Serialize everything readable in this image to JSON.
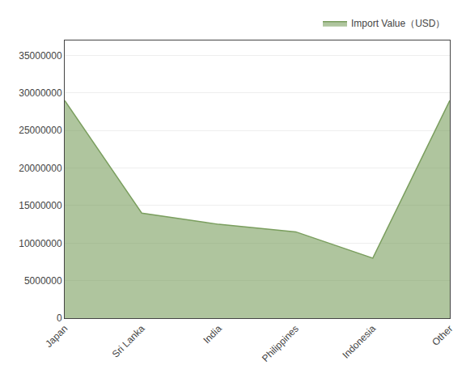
{
  "chart_data": {
    "type": "area",
    "categories": [
      "Japan",
      "Sri Lanka",
      "India",
      "Philippines",
      "Indonesia",
      "Other"
    ],
    "series": [
      {
        "name": "Import Value（USD）",
        "color": "#7a9e5e",
        "values": [
          29000000,
          14000000,
          12500000,
          11500000,
          8000000,
          29000000
        ]
      }
    ],
    "ylim": [
      0,
      37000000
    ],
    "yticks": [
      0,
      5000000,
      10000000,
      15000000,
      20000000,
      25000000,
      30000000,
      35000000
    ],
    "grid": true,
    "legend": "upper right"
  }
}
